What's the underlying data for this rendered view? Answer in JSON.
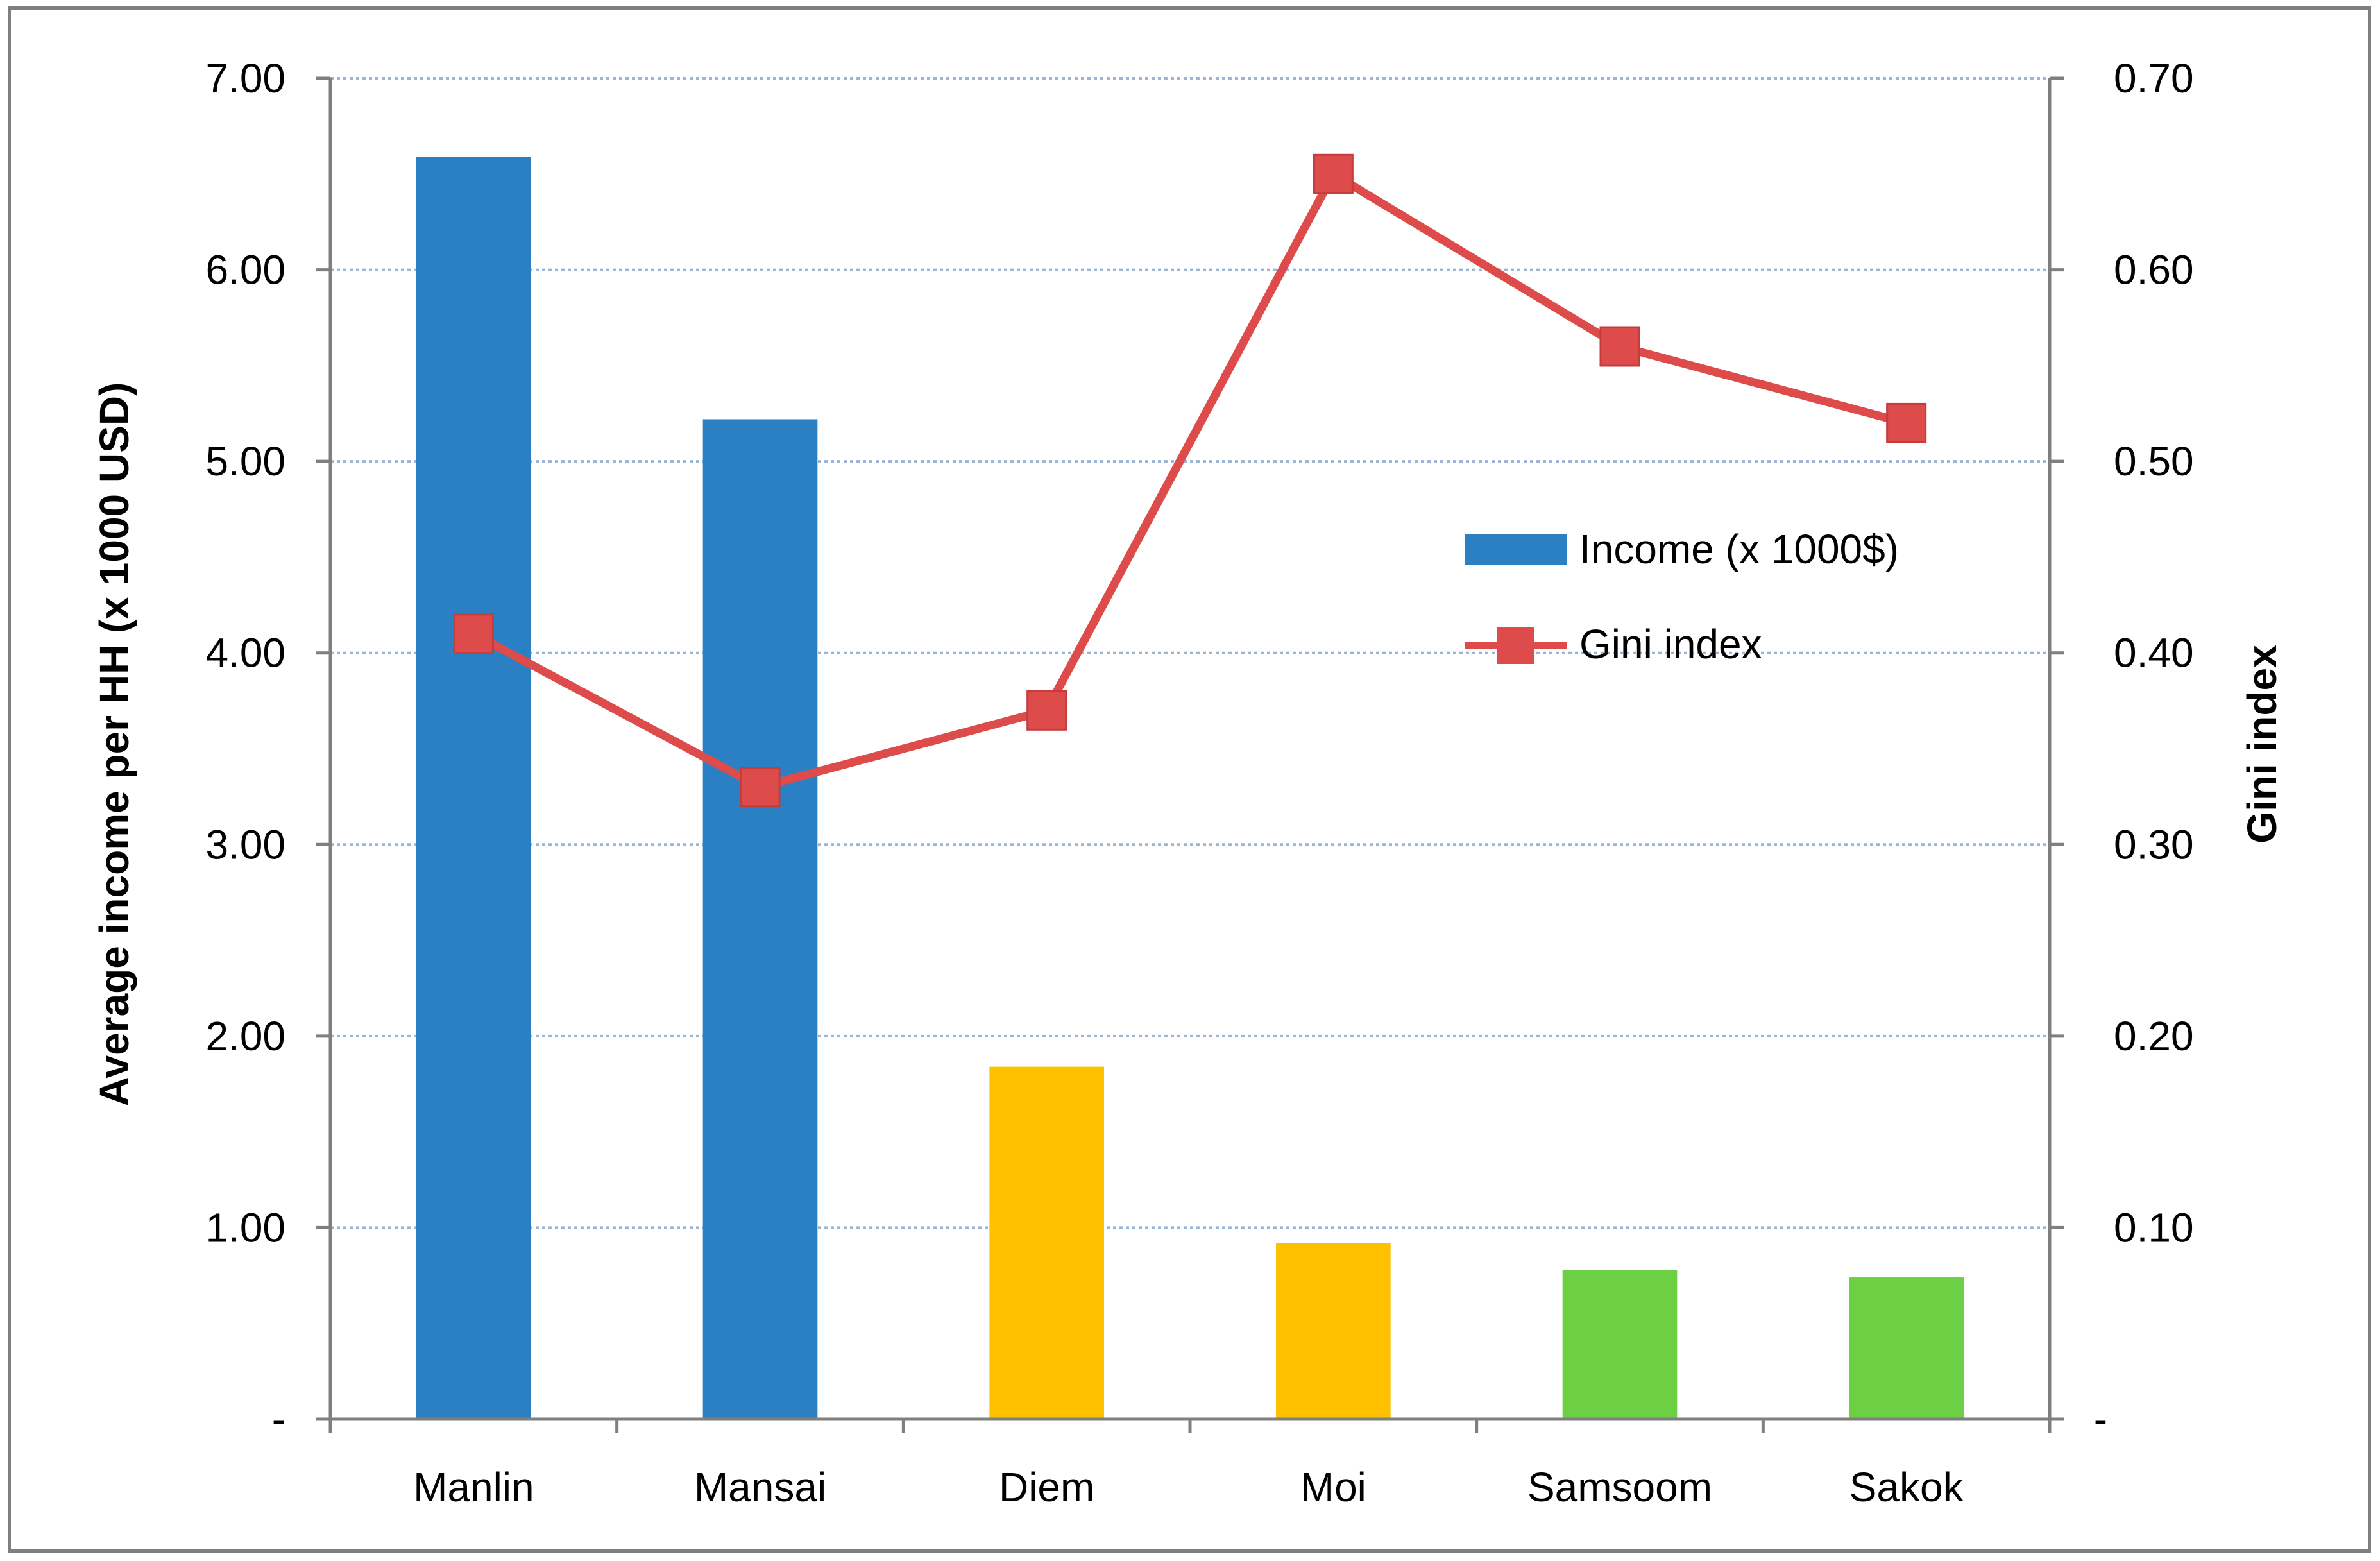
{
  "chart_data": {
    "type": "bar",
    "categories": [
      "Manlin",
      "Mansai",
      "Diem",
      "Moi",
      "Samsoom",
      "Sakok"
    ],
    "series": [
      {
        "name": "Income (x 1000$)",
        "type": "bar",
        "axis": "left",
        "values": [
          6.59,
          5.22,
          1.84,
          0.92,
          0.78,
          0.74
        ],
        "colors": [
          "#2a80c2",
          "#2a80c2",
          "#ffc000",
          "#ffc000",
          "#6ccf44",
          "#6ccf44"
        ]
      },
      {
        "name": "Gini index",
        "type": "line",
        "axis": "right",
        "values": [
          0.41,
          0.33,
          0.37,
          0.65,
          0.56,
          0.52
        ],
        "color": "#dd4b4b",
        "marker": "square"
      }
    ],
    "ylabel": "Average income per HH (x 1000 USD)",
    "y2label": "Gini index",
    "ylim": [
      0,
      7
    ],
    "y2lim": [
      0,
      0.7
    ],
    "yticks": [
      "-",
      "1.00",
      "2.00",
      "3.00",
      "4.00",
      "5.00",
      "6.00",
      "7.00"
    ],
    "y2ticks": [
      "-",
      "0.10",
      "0.20",
      "0.30",
      "0.40",
      "0.50",
      "0.60",
      "0.70"
    ],
    "grid": true,
    "legend_position": "right"
  }
}
